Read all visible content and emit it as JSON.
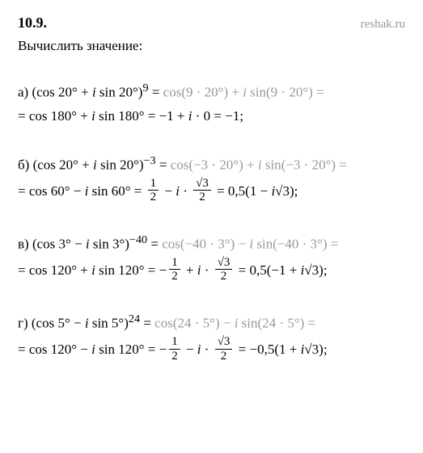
{
  "header": {
    "number": "10.9.",
    "site": "reshak.ru"
  },
  "prompt": "Вычислить значение:",
  "a": {
    "label": "а)",
    "line1_p1": "(cos 20° + ",
    "line1_i1": "i",
    "line1_p2": " sin 20°)",
    "line1_exp": "9",
    "line1_eq": " = ",
    "line1_g1": "cos(9 · 20°) + ",
    "line1_gi": "i",
    "line1_g2": " sin(9 · 20°) =",
    "line2_p1": "= cos 180° + ",
    "line2_i": "i",
    "line2_p2": " sin 180° = −1 + ",
    "line2_i2": "i",
    "line2_p3": " · 0 = −1;"
  },
  "b": {
    "label": "б)",
    "line1_p1": "(cos 20° + ",
    "line1_i1": "i",
    "line1_p2": " sin 20°)",
    "line1_exp": "−3",
    "line1_eq": " = ",
    "line1_g1": "cos(−3 · 20°) + ",
    "line1_gi": "i",
    "line1_g2": " sin(−3 · 20°) =",
    "line2_p1": "= cos 60° − ",
    "line2_i": "i",
    "line2_p2": " sin 60° = ",
    "frac1_num": "1",
    "frac1_den": "2",
    "line2_p3": " − ",
    "line2_i2": "i",
    "line2_p4": " · ",
    "frac2_num": "√3",
    "frac2_den": "2",
    "line2_p5": " = 0,5(1 − ",
    "line2_i3": "i",
    "line2_p6": "√3);"
  },
  "c": {
    "label": "в)",
    "line1_p1": "(cos 3° − ",
    "line1_i1": "i",
    "line1_p2": " sin 3°)",
    "line1_exp": "−40",
    "line1_eq": " = ",
    "line1_g1": "cos(−40 · 3°) − ",
    "line1_gi": "i",
    "line1_g2": " sin(−40 · 3°) =",
    "line2_p1": "= cos 120° + ",
    "line2_i": "i",
    "line2_p2": " sin 120° = −",
    "frac1_num": "1",
    "frac1_den": "2",
    "line2_p3": " + ",
    "line2_i2": "i",
    "line2_p4": " · ",
    "frac2_num": "√3",
    "frac2_den": "2",
    "line2_p5": " = 0,5(−1 + ",
    "line2_i3": "i",
    "line2_p6": "√3);"
  },
  "d": {
    "label": "г)",
    "line1_p1": "(cos 5° − ",
    "line1_i1": "i",
    "line1_p2": " sin 5°)",
    "line1_exp": "24",
    "line1_eq": " = ",
    "line1_g1": "cos(24 · 5°) − ",
    "line1_gi": "i",
    "line1_g2": " sin(24 · 5°) =",
    "line2_p1": "= cos 120° − ",
    "line2_i": "i",
    "line2_p2": " sin 120° = −",
    "frac1_num": "1",
    "frac1_den": "2",
    "line2_p3": " − ",
    "line2_i2": "i",
    "line2_p4": " · ",
    "frac2_num": "√3",
    "frac2_den": "2",
    "line2_p5": " = −0,5(1 + ",
    "line2_i3": "i",
    "line2_p6": "√3);"
  }
}
